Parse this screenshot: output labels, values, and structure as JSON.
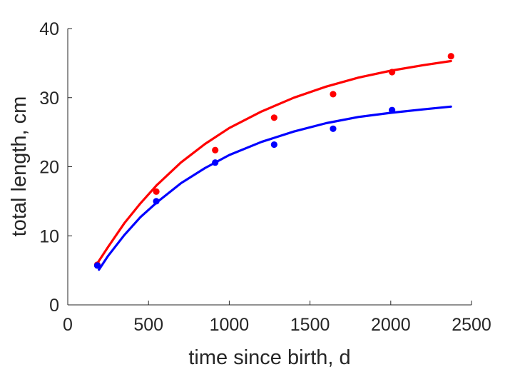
{
  "chart_data": {
    "type": "scatter",
    "xlabel": "time since birth, d",
    "ylabel": "total length, cm",
    "xlim": [
      0,
      2500
    ],
    "ylim": [
      0,
      40
    ],
    "xticks": [
      0,
      500,
      1000,
      1500,
      2000,
      2500
    ],
    "yticks": [
      0,
      10,
      20,
      30,
      40
    ],
    "grid": false,
    "legend": "none",
    "series": [
      {
        "color": "#ff0000",
        "points": {
          "x": [
            183,
            548,
            913,
            1278,
            1643,
            2008,
            2373
          ],
          "y": [
            5.8,
            16.4,
            22.4,
            27.1,
            30.5,
            33.7,
            36.0
          ]
        },
        "fit": {
          "x": [
            183,
            250,
            350,
            450,
            550,
            700,
            850,
            1000,
            1200,
            1400,
            1600,
            1800,
            2000,
            2200,
            2373
          ],
          "y": [
            6.0,
            8.4,
            11.8,
            14.7,
            17.3,
            20.6,
            23.3,
            25.6,
            28.0,
            30.0,
            31.6,
            32.9,
            33.9,
            34.7,
            35.3
          ]
        }
      },
      {
        "color": "#0000ff",
        "points": {
          "x": [
            183,
            548,
            913,
            1278,
            1643,
            2008
          ],
          "y": [
            5.7,
            15.0,
            20.6,
            23.2,
            25.5,
            28.2
          ]
        },
        "fit": {
          "x": [
            193,
            250,
            350,
            450,
            550,
            700,
            850,
            1000,
            1200,
            1400,
            1600,
            1800,
            2000,
            2200,
            2373
          ],
          "y": [
            5.1,
            7.1,
            10.1,
            12.7,
            14.8,
            17.6,
            19.8,
            21.7,
            23.6,
            25.1,
            26.3,
            27.2,
            27.8,
            28.3,
            28.7
          ]
        }
      }
    ]
  }
}
